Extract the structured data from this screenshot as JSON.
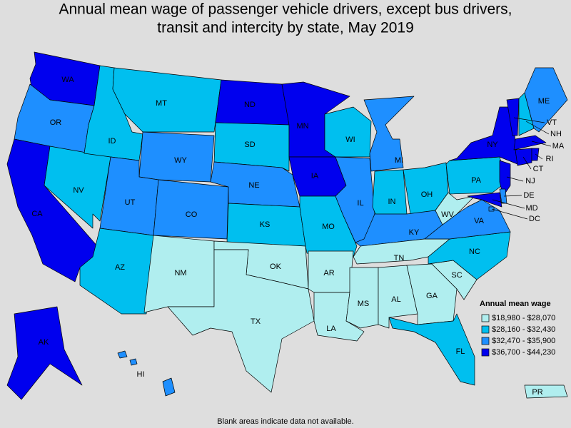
{
  "title": [
    "Annual mean wage of passenger vehicle drivers, except bus drivers,",
    "transit and intercity by state, May 2019"
  ],
  "legend": {
    "title": "Annual mean wage",
    "items": [
      {
        "label": "$18,980 - $28,070",
        "color": "#b0eeef"
      },
      {
        "label": "$28,160 - $32,430",
        "color": "#00bfef"
      },
      {
        "label": "$32,470 - $35,900",
        "color": "#1e8fff"
      },
      {
        "label": "$36,700 - $44,230",
        "color": "#0000ee"
      }
    ]
  },
  "states": [
    {
      "label": "WA",
      "color": "#0000ee"
    },
    {
      "label": "OR",
      "color": "#1e8fff"
    },
    {
      "label": "CA",
      "color": "#0000ee"
    },
    {
      "label": "NV",
      "color": "#00bfef"
    },
    {
      "label": "ID",
      "color": "#00bfef"
    },
    {
      "label": "MT",
      "color": "#00bfef"
    },
    {
      "label": "WY",
      "color": "#1e8fff"
    },
    {
      "label": "UT",
      "color": "#1e8fff"
    },
    {
      "label": "AZ",
      "color": "#00bfef"
    },
    {
      "label": "CO",
      "color": "#1e8fff"
    },
    {
      "label": "NM",
      "color": "#b0eeef"
    },
    {
      "label": "ND",
      "color": "#0000ee"
    },
    {
      "label": "SD",
      "color": "#00bfef"
    },
    {
      "label": "NE",
      "color": "#1e8fff"
    },
    {
      "label": "KS",
      "color": "#00bfef"
    },
    {
      "label": "OK",
      "color": "#b0eeef"
    },
    {
      "label": "TX",
      "color": "#b0eeef"
    },
    {
      "label": "MN",
      "color": "#0000ee"
    },
    {
      "label": "IA",
      "color": "#0000ee"
    },
    {
      "label": "MO",
      "color": "#00bfef"
    },
    {
      "label": "AR",
      "color": "#b0eeef"
    },
    {
      "label": "LA",
      "color": "#b0eeef"
    },
    {
      "label": "WI",
      "color": "#00bfef"
    },
    {
      "label": "IL",
      "color": "#1e8fff"
    },
    {
      "label": "MI",
      "color": "#1e8fff"
    },
    {
      "label": "IN",
      "color": "#00bfef"
    },
    {
      "label": "OH",
      "color": "#00bfef"
    },
    {
      "label": "KY",
      "color": "#1e8fff"
    },
    {
      "label": "TN",
      "color": "#b0eeef"
    },
    {
      "label": "MS",
      "color": "#b0eeef"
    },
    {
      "label": "AL",
      "color": "#b0eeef"
    },
    {
      "label": "GA",
      "color": "#b0eeef"
    },
    {
      "label": "FL",
      "color": "#00bfef"
    },
    {
      "label": "SC",
      "color": "#b0eeef"
    },
    {
      "label": "NC",
      "color": "#00bfef"
    },
    {
      "label": "VA",
      "color": "#1e8fff"
    },
    {
      "label": "WV",
      "color": "#b0eeef"
    },
    {
      "label": "PA",
      "color": "#00bfef"
    },
    {
      "label": "NY",
      "color": "#0000ee"
    },
    {
      "label": "VT",
      "color": "#0000ee"
    },
    {
      "label": "NH",
      "color": "#00bfef"
    },
    {
      "label": "ME",
      "color": "#1e8fff"
    },
    {
      "label": "MA",
      "color": "#0000ee"
    },
    {
      "label": "CT",
      "color": "#0000ee"
    },
    {
      "label": "RI",
      "color": "#0000ee"
    },
    {
      "label": "NJ",
      "color": "#0000ee"
    },
    {
      "label": "DE",
      "color": "#1e8fff"
    },
    {
      "label": "MD",
      "color": "#0000ee"
    },
    {
      "label": "DC",
      "color": "#1e8fff"
    },
    {
      "label": "AK",
      "color": "#0000ee"
    },
    {
      "label": "HI",
      "color": "#1e8fff"
    },
    {
      "label": "PR",
      "color": "#b0eeef"
    }
  ],
  "footnote": "Blank areas indicate data not available."
}
